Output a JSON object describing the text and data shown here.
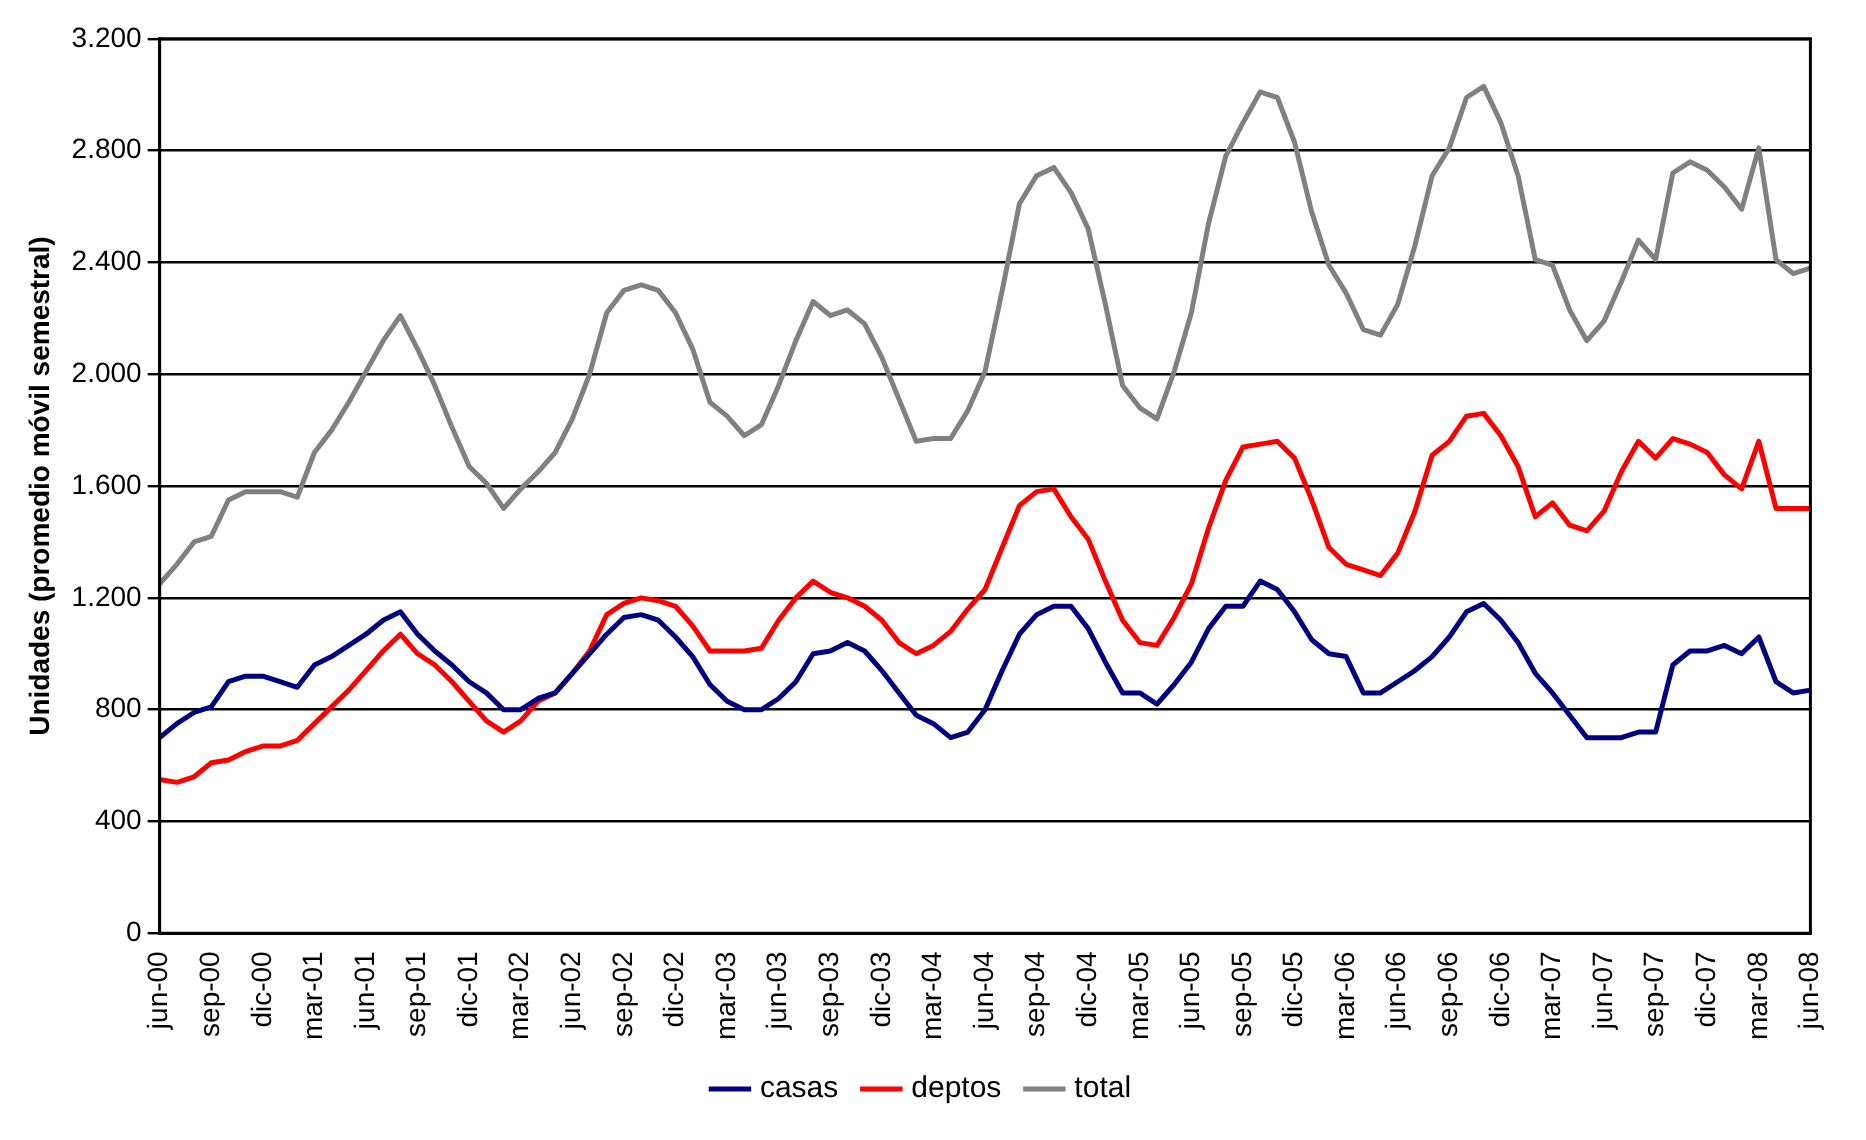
{
  "chart_data": {
    "type": "line",
    "ylabel": "Unidades (promedio móvil semestral)",
    "categories": [
      "jun-00",
      null,
      null,
      "sep-00",
      null,
      null,
      "dic-00",
      null,
      null,
      "mar-01",
      null,
      null,
      "jun-01",
      null,
      null,
      "sep-01",
      null,
      null,
      "dic-01",
      null,
      null,
      "mar-02",
      null,
      null,
      "jun-02",
      null,
      null,
      "sep-02",
      null,
      null,
      "dic-02",
      null,
      null,
      "mar-03",
      null,
      null,
      "jun-03",
      null,
      null,
      "sep-03",
      null,
      null,
      "dic-03",
      null,
      null,
      "mar-04",
      null,
      null,
      "jun-04",
      null,
      null,
      "sep-04",
      null,
      null,
      "dic-04",
      null,
      null,
      "mar-05",
      null,
      null,
      "jun-05",
      null,
      null,
      "sep-05",
      null,
      null,
      "dic-05",
      null,
      null,
      "mar-06",
      null,
      null,
      "jun-06",
      null,
      null,
      "sep-06",
      null,
      null,
      "dic-06",
      null,
      null,
      "mar-07",
      null,
      null,
      "jun-07",
      null,
      null,
      "sep-07",
      null,
      null,
      "dic-07",
      null,
      null,
      "mar-08",
      null,
      null,
      "jun-08"
    ],
    "series": [
      {
        "name": "casas",
        "color": "#000080",
        "values": [
          700,
          750,
          790,
          810,
          900,
          920,
          920,
          900,
          880,
          960,
          990,
          1030,
          1070,
          1120,
          1150,
          1070,
          1010,
          960,
          900,
          860,
          800,
          800,
          840,
          860,
          930,
          1000,
          1070,
          1130,
          1140,
          1120,
          1060,
          990,
          890,
          830,
          800,
          800,
          840,
          900,
          1000,
          1010,
          1040,
          1010,
          940,
          860,
          780,
          750,
          700,
          720,
          800,
          940,
          1070,
          1140,
          1170,
          1170,
          1090,
          970,
          860,
          860,
          820,
          890,
          970,
          1090,
          1170,
          1170,
          1260,
          1230,
          1150,
          1050,
          1000,
          990,
          860,
          860,
          900,
          940,
          990,
          1060,
          1150,
          1180,
          1120,
          1040,
          930,
          860,
          780,
          700,
          700,
          700,
          720,
          720,
          960,
          1010,
          1010,
          1030,
          1000,
          1060,
          900,
          860,
          870
        ]
      },
      {
        "name": "deptos",
        "color": "#ff0000",
        "values": [
          550,
          540,
          560,
          610,
          620,
          650,
          670,
          670,
          690,
          750,
          810,
          870,
          940,
          1010,
          1070,
          1000,
          960,
          900,
          830,
          760,
          720,
          760,
          830,
          860,
          930,
          1010,
          1140,
          1180,
          1200,
          1190,
          1170,
          1100,
          1010,
          1010,
          1010,
          1020,
          1120,
          1200,
          1260,
          1220,
          1200,
          1170,
          1120,
          1040,
          1000,
          1030,
          1080,
          1160,
          1230,
          1380,
          1530,
          1580,
          1590,
          1490,
          1410,
          1260,
          1120,
          1040,
          1030,
          1130,
          1250,
          1450,
          1620,
          1740,
          1750,
          1760,
          1700,
          1550,
          1380,
          1320,
          1300,
          1280,
          1360,
          1510,
          1710,
          1760,
          1850,
          1860,
          1780,
          1670,
          1490,
          1540,
          1460,
          1440,
          1510,
          1650,
          1760,
          1700,
          1770,
          1750,
          1720,
          1640,
          1590,
          1760,
          1520,
          1520,
          1520
        ]
      },
      {
        "name": "total",
        "color": "#808080",
        "values": [
          1250,
          1320,
          1400,
          1420,
          1550,
          1580,
          1580,
          1580,
          1560,
          1720,
          1800,
          1900,
          2010,
          2120,
          2210,
          2090,
          1960,
          1810,
          1670,
          1610,
          1520,
          1590,
          1650,
          1720,
          1840,
          2000,
          2220,
          2300,
          2320,
          2300,
          2220,
          2090,
          1900,
          1850,
          1780,
          1820,
          1960,
          2120,
          2260,
          2210,
          2230,
          2180,
          2060,
          1910,
          1760,
          1770,
          1770,
          1870,
          2010,
          2300,
          2610,
          2710,
          2740,
          2650,
          2520,
          2250,
          1960,
          1880,
          1840,
          2010,
          2220,
          2540,
          2780,
          2900,
          3010,
          2990,
          2830,
          2580,
          2390,
          2290,
          2160,
          2140,
          2250,
          2460,
          2710,
          2810,
          2990,
          3030,
          2900,
          2710,
          2410,
          2390,
          2230,
          2120,
          2190,
          2330,
          2480,
          2410,
          2720,
          2760,
          2730,
          2670,
          2590,
          2810,
          2410,
          2360,
          2380
        ]
      }
    ],
    "ylim": [
      0,
      3200
    ],
    "yticks": [
      {
        "value": 0,
        "label": "0"
      },
      {
        "value": 400,
        "label": "400"
      },
      {
        "value": 800,
        "label": "800"
      },
      {
        "value": 1200,
        "label": "1.200"
      },
      {
        "value": 1600,
        "label": "1.600"
      },
      {
        "value": 2000,
        "label": "2.000"
      },
      {
        "value": 2400,
        "label": "2.400"
      },
      {
        "value": 2800,
        "label": "2.800"
      },
      {
        "value": 3200,
        "label": "3.200"
      }
    ],
    "grid": "y",
    "legend": "bottom",
    "marker": "none",
    "line_style": "solid"
  }
}
